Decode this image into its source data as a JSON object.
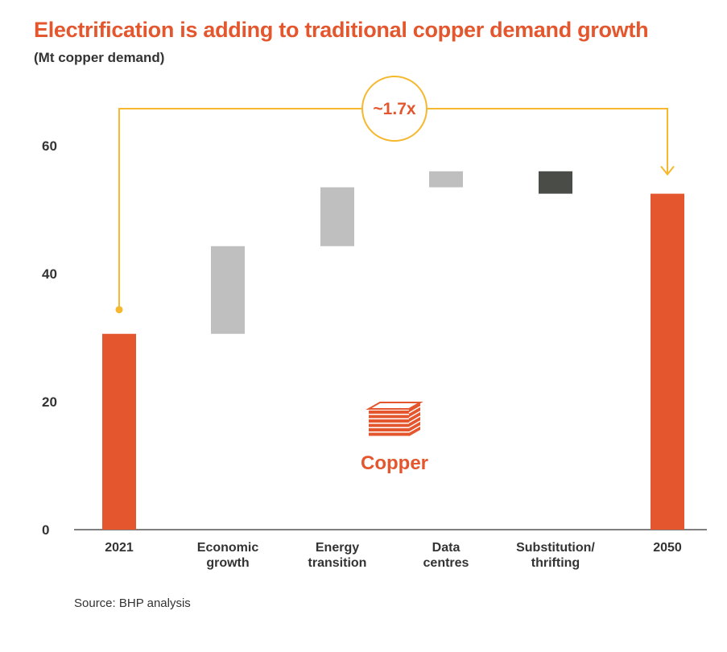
{
  "chart_data": {
    "type": "waterfall",
    "title": "Electrification is adding to traditional copper demand growth",
    "subtitle": "(Mt copper demand)",
    "categories": [
      [
        "2021"
      ],
      [
        "Economic",
        "growth"
      ],
      [
        "Energy",
        "transition"
      ],
      [
        "Data",
        "centres"
      ],
      [
        "Substitution/",
        "thrifting"
      ],
      [
        "2050"
      ]
    ],
    "steps": [
      {
        "kind": "total",
        "value": 30.6
      },
      {
        "kind": "increase",
        "from": 30.6,
        "to": 44.3
      },
      {
        "kind": "increase",
        "from": 44.3,
        "to": 53.5
      },
      {
        "kind": "increase",
        "from": 53.5,
        "to": 56.0
      },
      {
        "kind": "decrease",
        "from": 56.0,
        "to": 52.5
      },
      {
        "kind": "total",
        "value": 52.5
      }
    ],
    "ylim": [
      0,
      60
    ],
    "yticks": [
      0,
      20,
      40,
      60
    ],
    "annotation": "~1.7x",
    "logo_label": "Copper",
    "colors": {
      "total": "#e4572e",
      "increase": "#bfbfbf",
      "decrease": "#4a4c47",
      "bracket": "#f5b82e",
      "axis": "#555555"
    }
  },
  "source": "Source: BHP analysis"
}
